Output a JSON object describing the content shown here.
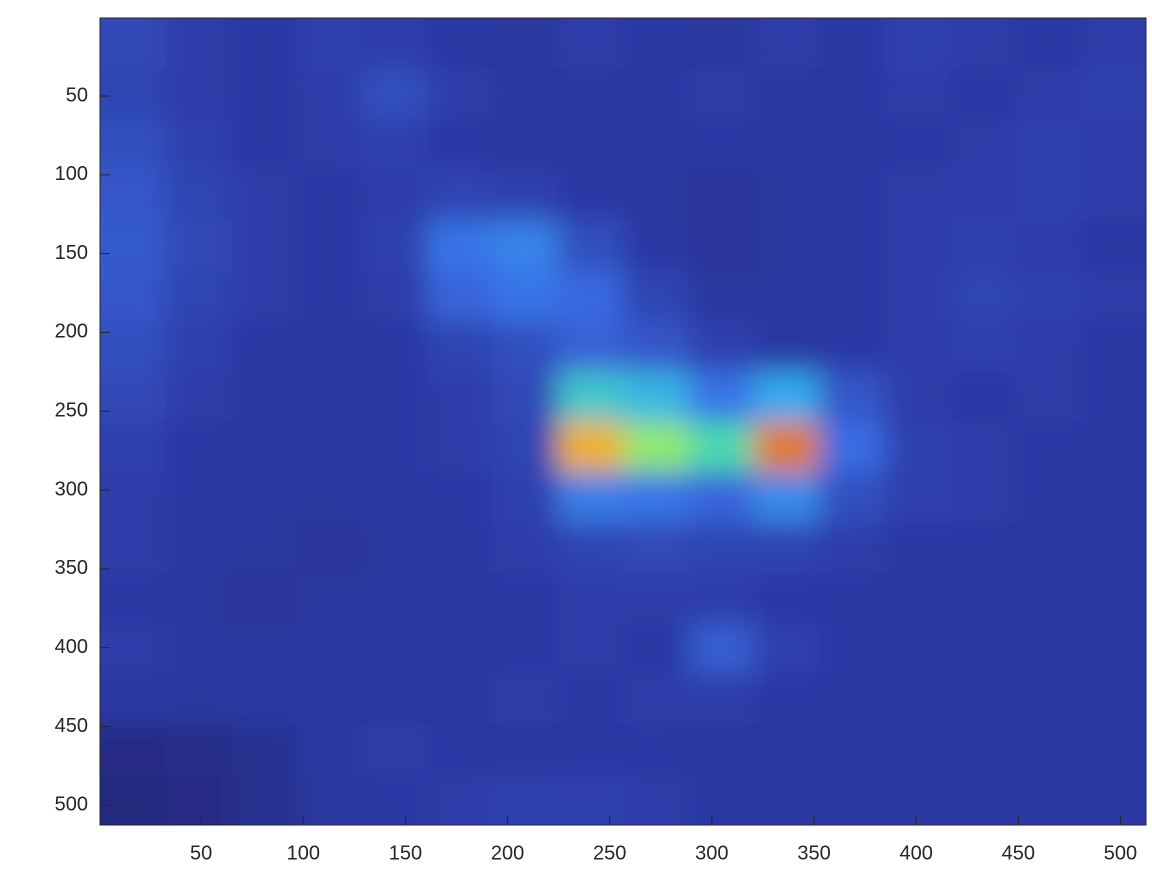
{
  "chart_data": {
    "type": "heatmap",
    "xlim": [
      0.5,
      512.5
    ],
    "ylim": [
      0.5,
      512.5
    ],
    "y_reversed": true,
    "xticks": [
      50,
      100,
      150,
      200,
      250,
      300,
      350,
      400,
      450,
      500
    ],
    "yticks": [
      50,
      100,
      150,
      200,
      250,
      300,
      350,
      400,
      450,
      500
    ],
    "clim": [
      0,
      1
    ],
    "colormap": [
      "#1d1858",
      "#2c3aa6",
      "#3a6fe6",
      "#33aef0",
      "#4fe0a2",
      "#c8f040",
      "#f7cf22",
      "#c8120f"
    ],
    "z": [
      [
        0.18,
        0.15,
        0.14,
        0.16,
        0.15,
        0.14,
        0.13,
        0.15,
        0.14,
        0.13,
        0.15,
        0.14,
        0.16,
        0.15,
        0.14,
        0.15
      ],
      [
        0.17,
        0.15,
        0.14,
        0.15,
        0.2,
        0.15,
        0.14,
        0.13,
        0.14,
        0.15,
        0.13,
        0.14,
        0.15,
        0.14,
        0.15,
        0.16
      ],
      [
        0.2,
        0.16,
        0.14,
        0.15,
        0.16,
        0.14,
        0.13,
        0.14,
        0.13,
        0.14,
        0.13,
        0.14,
        0.14,
        0.15,
        0.16,
        0.15
      ],
      [
        0.22,
        0.17,
        0.15,
        0.14,
        0.15,
        0.17,
        0.16,
        0.14,
        0.13,
        0.12,
        0.13,
        0.14,
        0.15,
        0.15,
        0.16,
        0.15
      ],
      [
        0.23,
        0.18,
        0.15,
        0.14,
        0.16,
        0.3,
        0.33,
        0.2,
        0.14,
        0.12,
        0.13,
        0.14,
        0.15,
        0.16,
        0.15,
        0.14
      ],
      [
        0.22,
        0.17,
        0.15,
        0.14,
        0.15,
        0.26,
        0.3,
        0.27,
        0.17,
        0.13,
        0.13,
        0.14,
        0.15,
        0.17,
        0.16,
        0.15
      ],
      [
        0.2,
        0.16,
        0.14,
        0.13,
        0.14,
        0.17,
        0.2,
        0.25,
        0.22,
        0.16,
        0.14,
        0.14,
        0.15,
        0.16,
        0.15,
        0.14
      ],
      [
        0.18,
        0.15,
        0.13,
        0.13,
        0.14,
        0.15,
        0.18,
        0.5,
        0.45,
        0.3,
        0.42,
        0.22,
        0.15,
        0.14,
        0.15,
        0.14
      ],
      [
        0.16,
        0.14,
        0.13,
        0.13,
        0.14,
        0.15,
        0.17,
        0.88,
        0.65,
        0.55,
        0.92,
        0.28,
        0.16,
        0.15,
        0.14,
        0.14
      ],
      [
        0.15,
        0.14,
        0.13,
        0.13,
        0.14,
        0.14,
        0.16,
        0.32,
        0.3,
        0.26,
        0.35,
        0.2,
        0.16,
        0.15,
        0.14,
        0.14
      ],
      [
        0.15,
        0.13,
        0.13,
        0.12,
        0.13,
        0.14,
        0.15,
        0.17,
        0.18,
        0.17,
        0.17,
        0.15,
        0.14,
        0.14,
        0.13,
        0.14
      ],
      [
        0.14,
        0.13,
        0.12,
        0.13,
        0.13,
        0.14,
        0.14,
        0.15,
        0.15,
        0.15,
        0.14,
        0.14,
        0.13,
        0.14,
        0.14,
        0.13
      ],
      [
        0.15,
        0.13,
        0.13,
        0.14,
        0.13,
        0.13,
        0.14,
        0.15,
        0.14,
        0.24,
        0.16,
        0.14,
        0.14,
        0.14,
        0.13,
        0.14
      ],
      [
        0.14,
        0.13,
        0.14,
        0.13,
        0.13,
        0.14,
        0.15,
        0.14,
        0.15,
        0.15,
        0.14,
        0.14,
        0.13,
        0.13,
        0.14,
        0.13
      ],
      [
        0.08,
        0.09,
        0.1,
        0.14,
        0.15,
        0.14,
        0.13,
        0.14,
        0.14,
        0.13,
        0.14,
        0.13,
        0.13,
        0.14,
        0.13,
        0.14
      ],
      [
        0.07,
        0.08,
        0.1,
        0.13,
        0.14,
        0.15,
        0.16,
        0.16,
        0.15,
        0.14,
        0.13,
        0.14,
        0.13,
        0.13,
        0.14,
        0.13
      ]
    ]
  }
}
